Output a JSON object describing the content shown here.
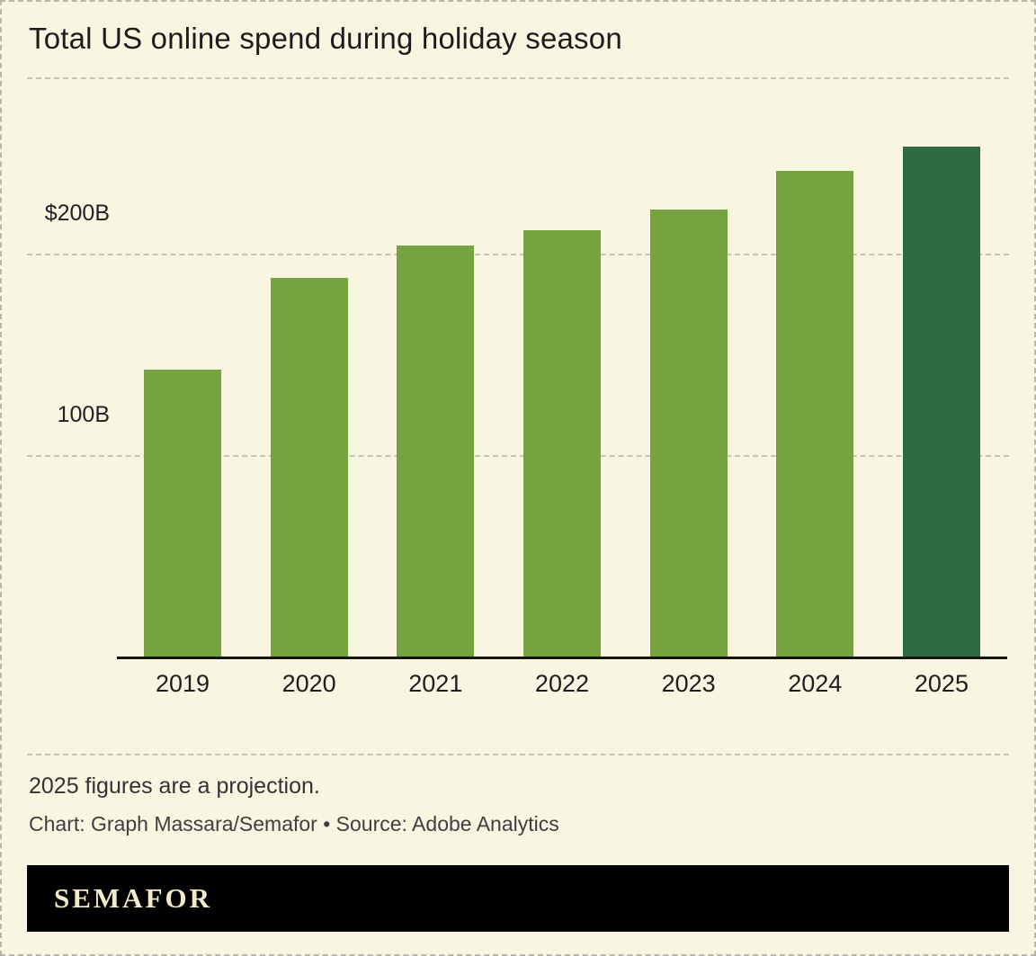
{
  "header": {
    "title": "Total US online spend during holiday season"
  },
  "chart_data": {
    "type": "bar",
    "title": "Total US online spend during holiday season",
    "categories": [
      "2019",
      "2020",
      "2021",
      "2022",
      "2023",
      "2024",
      "2025"
    ],
    "values": [
      142.5,
      188,
      204.5,
      211.7,
      222,
      241.4,
      253.4
    ],
    "unit": "USD billions",
    "xlabel": "",
    "ylabel": "",
    "ylim": [
      0,
      287
    ],
    "gridlines": [
      {
        "value": 100,
        "label": "100B"
      },
      {
        "value": 200,
        "label": "$200B"
      }
    ],
    "highlight_index": 6,
    "legend": "none",
    "colors": {
      "bar": "#76A23F",
      "highlight": "#2E6B45",
      "background": "#F8F5E1",
      "grid": "#C7C5B6",
      "axis": "#15160F"
    }
  },
  "notes": {
    "projection": "2025 figures are a projection.",
    "credit": "Chart: Graph Massara/Semafor • Source: Adobe Analytics"
  },
  "footer": {
    "logo": "SEMAFOR"
  }
}
